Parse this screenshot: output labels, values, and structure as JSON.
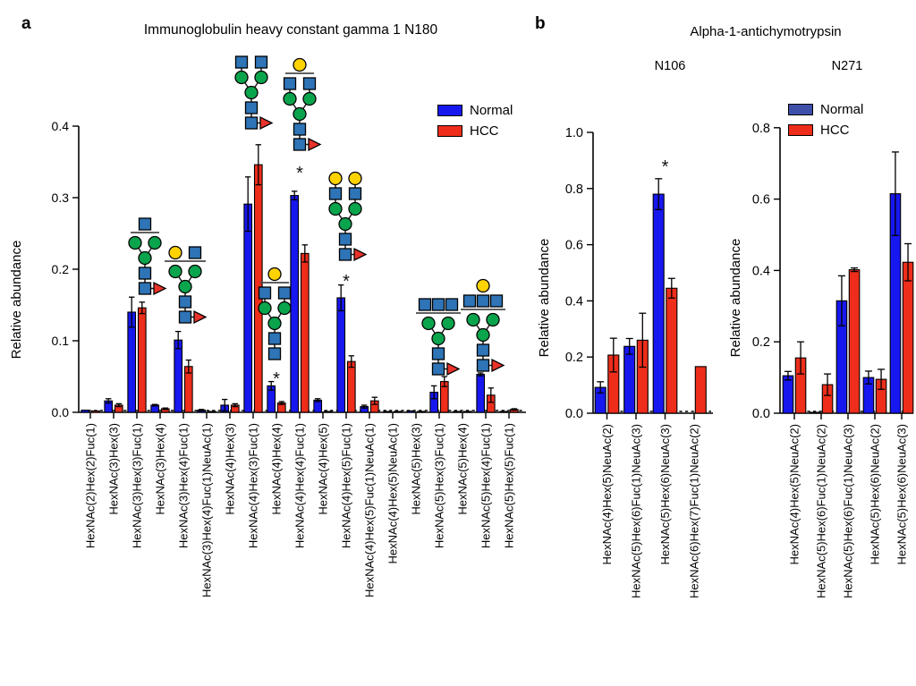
{
  "figure": {
    "panels": {
      "a": {
        "letter": "a",
        "title": "Immunoglobulin heavy constant gamma 1 N180",
        "y_axis_label": "Relative abundance",
        "legend": [
          {
            "label": "Normal",
            "color": "#1717F0"
          },
          {
            "label": "HCC",
            "color": "#EE2D1B"
          }
        ]
      },
      "b": {
        "letter": "b",
        "title": "Alpha-1-antichymotrypsin",
        "legend": [
          {
            "label": "Normal",
            "color": "#3E4FA9"
          },
          {
            "label": "HCC",
            "color": "#EE2D1B"
          }
        ],
        "subpanels": [
          {
            "title": "N106",
            "y_axis_label": "Relative abundance"
          },
          {
            "title": "N271",
            "y_axis_label": "Relative abundance"
          }
        ]
      }
    },
    "significance_marker": "*",
    "glycan_symbol_colors": {
      "GlcNAc": "#2E74B6",
      "Man": "#0AA44D",
      "Gal": "#FFD300",
      "Fuc": "#E9322A"
    },
    "glycans": [
      {
        "name": "glycan-hexnac3-hex3-fuc1",
        "category_index": 2,
        "antenna_rows": [
          {
            "symbols": [
              "GlcNAc"
            ],
            "floating": true,
            "underline": true
          }
        ],
        "core_fucose": true
      },
      {
        "name": "glycan-hexnac3-hex4-fuc1",
        "category_index": 4,
        "antenna_rows": [
          {
            "symbols": [
              "Gal",
              "GlcNAc"
            ],
            "floating": true,
            "underline": true
          }
        ],
        "core_fucose": true
      },
      {
        "name": "glycan-hexnac4-hex3-fuc1",
        "category_index": 7,
        "antenna_rows": [
          {
            "symbols": [
              "GlcNAc",
              "GlcNAc"
            ],
            "floating": false,
            "underline": false
          }
        ],
        "core_fucose": true
      },
      {
        "name": "glycan-hexnac4-hex4",
        "category_index": 8,
        "antenna_rows": [
          {
            "symbols": [
              "Gal"
            ],
            "floating": true,
            "underline": true
          },
          {
            "symbols": [
              "GlcNAc",
              "GlcNAc"
            ],
            "floating": false,
            "underline": false
          }
        ],
        "core_fucose": false
      },
      {
        "name": "glycan-hexnac4-hex4-fuc1",
        "category_index": 9,
        "antenna_rows": [
          {
            "symbols": [
              "Gal"
            ],
            "floating": true,
            "underline": true
          },
          {
            "symbols": [
              "GlcNAc",
              "GlcNAc"
            ],
            "floating": false,
            "underline": false
          }
        ],
        "core_fucose": true
      },
      {
        "name": "glycan-hexnac4-hex5-fuc1",
        "category_index": 11,
        "antenna_rows": [
          {
            "symbols": [
              "Gal",
              "Gal"
            ],
            "floating": false,
            "underline": false
          },
          {
            "symbols": [
              "GlcNAc",
              "GlcNAc"
            ],
            "floating": false,
            "underline": false
          }
        ],
        "core_fucose": true
      },
      {
        "name": "glycan-hexnac5-hex3-fuc1",
        "category_index": 15,
        "antenna_rows": [
          {
            "symbols": [
              "GlcNAc",
              "GlcNAc",
              "GlcNAc"
            ],
            "floating": true,
            "underline": true
          }
        ],
        "core_fucose": true
      },
      {
        "name": "glycan-hexnac5-hex4-fuc1",
        "category_index": 17,
        "antenna_rows": [
          {
            "symbols": [
              "Gal"
            ],
            "floating": true,
            "underline": false
          },
          {
            "symbols": [
              "GlcNAc",
              "GlcNAc",
              "GlcNAc"
            ],
            "floating": true,
            "underline": true
          }
        ],
        "core_fucose": true
      }
    ]
  },
  "chart_data": [
    {
      "id": "igg1-n180",
      "type": "bar",
      "title": "Immunoglobulin heavy constant gamma 1 N180",
      "xlabel": "",
      "ylabel": "Relative abundance",
      "ylim": [
        0,
        0.4
      ],
      "ytick_step": 0.1,
      "grid": false,
      "legend_position": "top-right",
      "error_bars": "sd",
      "categories": [
        "HexNAc(2)Hex(2)Fuc(1)",
        "HexNAc(3)Hex(3)",
        "HexNAc(3)Hex(3)Fuc(1)",
        "HexNAc(3)Hex(4)",
        "HexNAc(3)Hex(4)Fuc(1)",
        "HexNAc(3)Hex(4)Fuc(1)NeuAc(1)",
        "HexNAc(4)Hex(3)",
        "HexNAc(4)Hex(3)Fuc(1)",
        "HexNAc(4)Hex(4)",
        "HexNAc(4)Hex(4)Fuc(1)",
        "HexNAc(4)Hex(5)",
        "HexNAc(4)Hex(5)Fuc(1)",
        "HexNAc(4)Hex(5)Fuc(1)NeuAc(1)",
        "HexNAc(4)Hex(5)NeuAc(1)",
        "HexNAc(5)Hex(3)",
        "HexNAc(5)Hex(3)Fuc(1)",
        "HexNAc(5)Hex(4)",
        "HexNAc(5)Hex(4)Fuc(1)",
        "HexNAc(5)Hex(5)Fuc(1)"
      ],
      "series": [
        {
          "name": "Normal",
          "color": "#1717F0",
          "values": [
            0.003,
            0.016,
            0.14,
            0.01,
            0.101,
            0.003,
            0.01,
            0.291,
            0.037,
            0.303,
            0.017,
            0.16,
            0.008,
            0.001,
            0.002,
            0.028,
            0.001,
            0.053,
            0.001
          ],
          "errors": [
            0,
            0.003,
            0.021,
            0.001,
            0.012,
            0.001,
            0.008,
            0.038,
            0.006,
            0.006,
            0.002,
            0.018,
            0.002,
            0,
            0,
            0.009,
            0,
            0.002,
            0
          ]
        },
        {
          "name": "HCC",
          "color": "#EE2D1B",
          "values": [
            0.002,
            0.01,
            0.146,
            0.005,
            0.064,
            0.001,
            0.01,
            0.346,
            0.013,
            0.222,
            0.001,
            0.071,
            0.016,
            0.001,
            0.001,
            0.043,
            0.001,
            0.024,
            0.004
          ],
          "errors": [
            0,
            0.002,
            0.008,
            0.001,
            0.009,
            0,
            0.002,
            0.028,
            0.002,
            0.012,
            0,
            0.008,
            0.005,
            0,
            0,
            0.007,
            0,
            0.01,
            0.001
          ]
        }
      ],
      "significant_category_indices": [
        8,
        9,
        11
      ]
    },
    {
      "id": "aact-n106",
      "type": "bar",
      "title": "N106",
      "xlabel": "",
      "ylabel": "Relative abundance",
      "ylim": [
        0,
        1.0
      ],
      "ytick_step": 0.2,
      "grid": false,
      "legend_position": "none",
      "error_bars": "sd",
      "categories": [
        "HexNAc(4)Hex(5)NeuAc(2)",
        "HexNAc(5)Hex(6)Fuc(1)NeuAc(3)",
        "HexNAc(5)Hex(6)NeuAc(3)",
        "HexNAc(6)Hex(7)Fuc(1)NeuAc(2)"
      ],
      "series": [
        {
          "name": "Normal",
          "color": "#1717F0",
          "values": [
            0.092,
            0.238,
            0.78,
            0
          ],
          "errors": [
            0.02,
            0.028,
            0.055,
            0
          ]
        },
        {
          "name": "HCC",
          "color": "#EE2D1B",
          "values": [
            0.207,
            0.26,
            0.445,
            0.166
          ],
          "errors": [
            0.06,
            0.096,
            0.035,
            0
          ]
        }
      ],
      "significant_category_indices": [
        2
      ]
    },
    {
      "id": "aact-n271",
      "type": "bar",
      "title": "N271",
      "xlabel": "",
      "ylabel": "Relative abundance",
      "ylim": [
        0,
        0.8
      ],
      "ytick_step": 0.2,
      "grid": false,
      "legend_position": "top-left",
      "error_bars": "sd",
      "categories": [
        "HexNAc(4)Hex(5)NeuAc(2)",
        "HexNAc(5)Hex(6)Fuc(1)NeuAc(2)",
        "HexNAc(5)Hex(6)Fuc(1)NeuAc(3)",
        "HexNAc(5)Hex(6)NeuAc(2)",
        "HexNAc(5)Hex(6)NeuAc(3)"
      ],
      "series": [
        {
          "name": "Normal",
          "color": "#1717F0",
          "values": [
            0.105,
            0.002,
            0.315,
            0.1,
            0.615
          ],
          "errors": [
            0.012,
            0,
            0.07,
            0.018,
            0.117
          ]
        },
        {
          "name": "HCC",
          "color": "#EE2D1B",
          "values": [
            0.155,
            0.08,
            0.402,
            0.095,
            0.423
          ],
          "errors": [
            0.045,
            0.03,
            0.005,
            0.028,
            0.052
          ]
        }
      ],
      "significant_category_indices": []
    }
  ]
}
